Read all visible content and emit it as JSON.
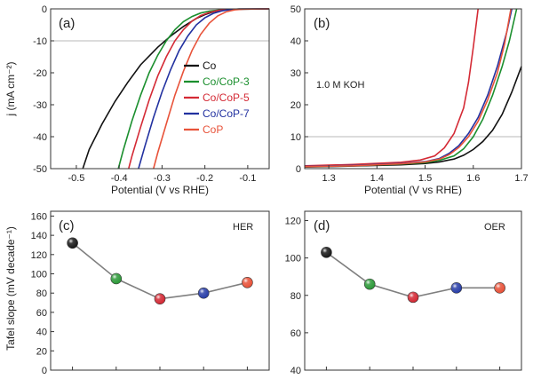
{
  "chart_data": [
    {
      "panel": "(a)",
      "type": "line",
      "xlabel": "Potential (V vs RHE)",
      "ylabel": "j (mA cm⁻²)",
      "xlim": [
        -0.56,
        -0.05
      ],
      "ylim": [
        -50,
        0
      ],
      "xticks": [
        -0.5,
        -0.4,
        -0.3,
        -0.2,
        -0.1
      ],
      "yticks": [
        0,
        -10,
        -20,
        -30,
        -40,
        -50
      ],
      "reference_line_y": -10,
      "legend": "right, middle",
      "series": [
        {
          "name": "Co",
          "color": "#111111",
          "x": [
            -0.485,
            -0.47,
            -0.44,
            -0.41,
            -0.38,
            -0.35,
            -0.31,
            -0.28,
            -0.25,
            -0.22,
            -0.2,
            -0.18,
            -0.16,
            -0.12,
            -0.05
          ],
          "y": [
            -50,
            -44,
            -36,
            -29,
            -23,
            -17.5,
            -12,
            -8.5,
            -5.5,
            -3,
            -1.8,
            -0.9,
            -0.4,
            -0.1,
            0
          ]
        },
        {
          "name": "Co/CoP-3",
          "color": "#1b8f2e",
          "x": [
            -0.402,
            -0.39,
            -0.37,
            -0.35,
            -0.33,
            -0.31,
            -0.29,
            -0.27,
            -0.25,
            -0.23,
            -0.21,
            -0.19,
            -0.16,
            -0.12,
            -0.05
          ],
          "y": [
            -50,
            -44,
            -35,
            -27,
            -20,
            -14.5,
            -10,
            -6.5,
            -4,
            -2.4,
            -1.3,
            -0.7,
            -0.25,
            -0.05,
            0
          ]
        },
        {
          "name": "Co/CoP-5",
          "color": "#d42a35",
          "x": [
            -0.378,
            -0.37,
            -0.35,
            -0.33,
            -0.31,
            -0.29,
            -0.27,
            -0.25,
            -0.23,
            -0.21,
            -0.19,
            -0.17,
            -0.15,
            -0.12,
            -0.05
          ],
          "y": [
            -50,
            -46,
            -37,
            -28.5,
            -21,
            -15,
            -10,
            -6.5,
            -3.8,
            -2.1,
            -1.1,
            -0.5,
            -0.2,
            -0.05,
            0
          ]
        },
        {
          "name": "Co/CoP-7",
          "color": "#2231a0",
          "x": [
            -0.355,
            -0.34,
            -0.32,
            -0.3,
            -0.28,
            -0.26,
            -0.24,
            -0.22,
            -0.2,
            -0.18,
            -0.16,
            -0.14,
            -0.12,
            -0.05
          ],
          "y": [
            -50,
            -43,
            -34,
            -26,
            -19,
            -13,
            -8.5,
            -5,
            -2.8,
            -1.4,
            -0.6,
            -0.2,
            -0.05,
            0
          ]
        },
        {
          "name": "CoP",
          "color": "#e8533a",
          "x": [
            -0.32,
            -0.31,
            -0.29,
            -0.27,
            -0.25,
            -0.23,
            -0.21,
            -0.19,
            -0.17,
            -0.15,
            -0.13,
            -0.11,
            -0.05
          ],
          "y": [
            -50,
            -45,
            -36,
            -27,
            -19.5,
            -13,
            -8,
            -4.5,
            -2.2,
            -0.9,
            -0.3,
            -0.08,
            0
          ]
        }
      ]
    },
    {
      "panel": "(b)",
      "type": "line",
      "xlabel": "Potential (V vs RHE)",
      "annotation": "1.0 M KOH",
      "xlim": [
        1.25,
        1.7
      ],
      "ylim": [
        0,
        50
      ],
      "xticks": [
        1.3,
        1.4,
        1.5,
        1.6,
        1.7
      ],
      "yticks": [
        0,
        10,
        20,
        30,
        40,
        50
      ],
      "reference_line_y": 10,
      "series": [
        {
          "name": "Co",
          "color": "#111111",
          "x": [
            1.25,
            1.35,
            1.45,
            1.5,
            1.53,
            1.56,
            1.58,
            1.6,
            1.62,
            1.64,
            1.66,
            1.68,
            1.7
          ],
          "y": [
            0.5,
            0.8,
            1.2,
            1.6,
            2.1,
            3,
            4.2,
            6,
            8.5,
            12,
            17,
            24,
            32
          ]
        },
        {
          "name": "Co/CoP-3",
          "color": "#1b8f2e",
          "x": [
            1.25,
            1.35,
            1.45,
            1.5,
            1.53,
            1.56,
            1.58,
            1.6,
            1.62,
            1.64,
            1.66,
            1.675,
            1.69
          ],
          "y": [
            0.6,
            0.9,
            1.4,
            1.9,
            2.6,
            4,
            6.2,
            10,
            15.5,
            23,
            32,
            40,
            50
          ]
        },
        {
          "name": "Co/CoP-5",
          "color": "#d42a35",
          "x": [
            1.25,
            1.35,
            1.45,
            1.49,
            1.52,
            1.54,
            1.56,
            1.58,
            1.59,
            1.6,
            1.61
          ],
          "y": [
            0.9,
            1.3,
            2,
            2.7,
            4,
            6.5,
            11,
            19,
            27,
            38,
            50
          ]
        },
        {
          "name": "Co/CoP-7",
          "color": "#2231a0",
          "x": [
            1.25,
            1.35,
            1.45,
            1.5,
            1.53,
            1.55,
            1.57,
            1.59,
            1.61,
            1.63,
            1.65,
            1.67,
            1.68
          ],
          "y": [
            0.7,
            1,
            1.6,
            2.2,
            3.2,
            4.8,
            7.2,
            11,
            16,
            23,
            32,
            43,
            50
          ]
        },
        {
          "name": "CoP",
          "color": "#e8533a",
          "x": [
            1.25,
            1.35,
            1.45,
            1.5,
            1.53,
            1.55,
            1.57,
            1.59,
            1.61,
            1.63,
            1.65,
            1.665,
            1.678
          ],
          "y": [
            0.6,
            0.9,
            1.5,
            2.1,
            3,
            4.4,
            6.6,
            10,
            14.8,
            21.5,
            30,
            39,
            50
          ]
        }
      ]
    },
    {
      "panel": "(c)",
      "type": "scatter",
      "annotation": "HER",
      "ylabel": "Tafel slope (mV decade⁻¹)",
      "ylim": [
        0,
        165
      ],
      "yticks": [
        0,
        20,
        40,
        60,
        80,
        100,
        120,
        140,
        160
      ],
      "x": [
        1,
        2,
        3,
        4,
        5
      ],
      "xlim": [
        0.5,
        5.5
      ],
      "values": [
        132,
        95,
        74,
        80,
        91
      ],
      "colors": [
        "#1a1a1a",
        "#2e9a3a",
        "#d42a35",
        "#2a3fa8",
        "#e8533a"
      ]
    },
    {
      "panel": "(d)",
      "type": "scatter",
      "annotation": "OER",
      "ylim": [
        40,
        125
      ],
      "yticks": [
        40,
        60,
        80,
        100,
        120
      ],
      "x": [
        1,
        2,
        3,
        4,
        5
      ],
      "xlim": [
        0.5,
        5.5
      ],
      "values": [
        103,
        86,
        79,
        84,
        84
      ],
      "colors": [
        "#1a1a1a",
        "#2e9a3a",
        "#d42a35",
        "#2a3fa8",
        "#e8533a"
      ]
    }
  ]
}
